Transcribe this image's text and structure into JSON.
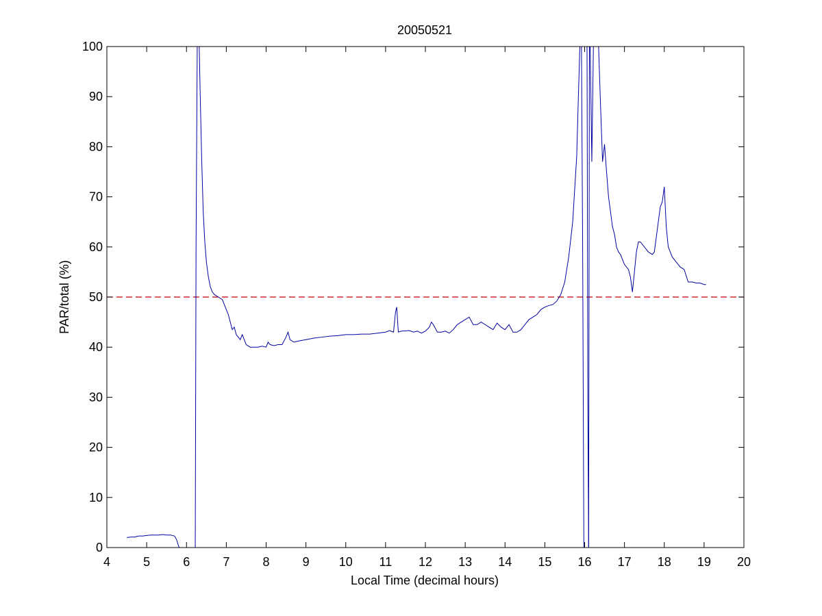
{
  "chart_data": {
    "type": "line",
    "title": "20050521",
    "xlabel": "Local Time (decimal hours)",
    "ylabel": "PAR/total (%)",
    "xlim": [
      4,
      20
    ],
    "ylim": [
      0,
      100
    ],
    "xticks": [
      "4",
      "5",
      "6",
      "7",
      "8",
      "9",
      "10",
      "11",
      "12",
      "13",
      "14",
      "15",
      "16",
      "17",
      "18",
      "19",
      "20"
    ],
    "yticks": [
      "0",
      "10",
      "20",
      "30",
      "40",
      "50",
      "60",
      "70",
      "80",
      "90",
      "100"
    ],
    "grid": false,
    "reference_line": {
      "y": 50,
      "style": "dashed",
      "color": "#c00000"
    },
    "series": [
      {
        "color": "#0000a0",
        "segments": [
          [
            [
              4.5,
              2.0
            ],
            [
              4.6,
              2.1
            ],
            [
              4.7,
              2.1
            ],
            [
              4.8,
              2.3
            ],
            [
              4.9,
              2.3
            ],
            [
              5.0,
              2.4
            ],
            [
              5.1,
              2.5
            ],
            [
              5.2,
              2.5
            ],
            [
              5.3,
              2.5
            ],
            [
              5.4,
              2.6
            ],
            [
              5.5,
              2.5
            ],
            [
              5.6,
              2.5
            ],
            [
              5.7,
              2.3
            ],
            [
              5.75,
              1.6
            ],
            [
              5.8,
              0.3
            ],
            [
              5.82,
              0.0
            ]
          ],
          [
            [
              6.22,
              0.0
            ],
            [
              6.24,
              60
            ],
            [
              6.27,
              100
            ]
          ],
          [
            [
              6.32,
              100
            ],
            [
              6.34,
              92
            ],
            [
              6.38,
              78
            ],
            [
              6.42,
              67
            ],
            [
              6.46,
              61
            ],
            [
              6.5,
              57
            ],
            [
              6.55,
              54
            ],
            [
              6.6,
              52
            ],
            [
              6.65,
              51
            ],
            [
              6.7,
              50.5
            ],
            [
              6.8,
              50
            ],
            [
              6.9,
              49.5
            ],
            [
              7.0,
              47.5
            ],
            [
              7.05,
              46.5
            ],
            [
              7.1,
              45
            ],
            [
              7.15,
              43.5
            ],
            [
              7.2,
              44
            ],
            [
              7.25,
              42.5
            ],
            [
              7.3,
              42
            ],
            [
              7.35,
              41.5
            ],
            [
              7.4,
              42.5
            ],
            [
              7.45,
              41.5
            ],
            [
              7.5,
              40.5
            ],
            [
              7.6,
              40
            ],
            [
              7.7,
              40
            ],
            [
              7.8,
              40
            ],
            [
              7.9,
              40.2
            ],
            [
              8.0,
              40
            ],
            [
              8.05,
              41
            ],
            [
              8.1,
              40.5
            ],
            [
              8.2,
              40.3
            ],
            [
              8.3,
              40.5
            ],
            [
              8.4,
              40.5
            ],
            [
              8.5,
              42
            ],
            [
              8.55,
              43
            ],
            [
              8.6,
              41.5
            ],
            [
              8.7,
              41
            ],
            [
              8.8,
              41.2
            ],
            [
              9.0,
              41.5
            ],
            [
              9.2,
              41.8
            ],
            [
              9.4,
              42
            ],
            [
              9.6,
              42.2
            ],
            [
              9.8,
              42.3
            ],
            [
              10.0,
              42.5
            ],
            [
              10.2,
              42.5
            ],
            [
              10.4,
              42.6
            ],
            [
              10.6,
              42.6
            ],
            [
              10.8,
              42.8
            ],
            [
              11.0,
              43
            ],
            [
              11.1,
              43.3
            ],
            [
              11.2,
              43
            ],
            [
              11.25,
              47
            ],
            [
              11.28,
              48
            ],
            [
              11.32,
              43
            ],
            [
              11.4,
              43.2
            ],
            [
              11.6,
              43.3
            ],
            [
              11.7,
              43
            ],
            [
              11.8,
              43.2
            ],
            [
              11.9,
              42.8
            ],
            [
              12.0,
              43.2
            ],
            [
              12.1,
              44
            ],
            [
              12.15,
              45
            ],
            [
              12.2,
              44.5
            ],
            [
              12.3,
              43
            ],
            [
              12.4,
              43
            ],
            [
              12.5,
              43.2
            ],
            [
              12.6,
              42.8
            ],
            [
              12.7,
              43.5
            ],
            [
              12.8,
              44.5
            ],
            [
              12.9,
              45
            ],
            [
              13.0,
              45.5
            ],
            [
              13.1,
              46
            ],
            [
              13.2,
              44.5
            ],
            [
              13.3,
              44.5
            ],
            [
              13.4,
              45
            ],
            [
              13.5,
              44.5
            ],
            [
              13.6,
              44
            ],
            [
              13.7,
              43.5
            ],
            [
              13.8,
              44.8
            ],
            [
              13.9,
              44
            ],
            [
              14.0,
              43.5
            ],
            [
              14.1,
              44.5
            ],
            [
              14.2,
              43
            ],
            [
              14.3,
              43
            ],
            [
              14.4,
              43.5
            ],
            [
              14.5,
              44.5
            ],
            [
              14.6,
              45.5
            ],
            [
              14.7,
              46
            ],
            [
              14.8,
              46.5
            ],
            [
              14.9,
              47.5
            ],
            [
              15.0,
              48
            ],
            [
              15.1,
              48.3
            ],
            [
              15.2,
              48.5
            ],
            [
              15.3,
              49.2
            ],
            [
              15.4,
              50.5
            ],
            [
              15.5,
              53
            ],
            [
              15.6,
              58
            ],
            [
              15.7,
              65
            ],
            [
              15.8,
              78
            ],
            [
              15.85,
              92
            ],
            [
              15.88,
              100
            ]
          ],
          [
            [
              15.92,
              100
            ],
            [
              15.95,
              60
            ],
            [
              15.98,
              0.0
            ]
          ],
          [
            [
              16.0,
              100
            ],
            [
              16.06,
              100
            ],
            [
              16.08,
              30
            ],
            [
              16.1,
              0.0
            ]
          ],
          [
            [
              16.1,
              0.0
            ],
            [
              16.12,
              100
            ]
          ],
          [
            [
              16.14,
              100
            ],
            [
              16.18,
              77
            ],
            [
              16.22,
              100
            ]
          ],
          [
            [
              16.35,
              100
            ],
            [
              16.4,
              88
            ],
            [
              16.45,
              77
            ],
            [
              16.5,
              80.5
            ],
            [
              16.55,
              75
            ],
            [
              16.6,
              70
            ],
            [
              16.65,
              67
            ],
            [
              16.7,
              64
            ],
            [
              16.75,
              62.5
            ],
            [
              16.8,
              60
            ],
            [
              16.85,
              59
            ],
            [
              16.9,
              58.5
            ],
            [
              17.0,
              56.5
            ],
            [
              17.1,
              55.5
            ],
            [
              17.15,
              54
            ],
            [
              17.2,
              51
            ],
            [
              17.25,
              55
            ],
            [
              17.3,
              59
            ],
            [
              17.35,
              61
            ],
            [
              17.4,
              61
            ],
            [
              17.5,
              60
            ],
            [
              17.6,
              59
            ],
            [
              17.7,
              58.5
            ],
            [
              17.75,
              59
            ],
            [
              17.8,
              62
            ],
            [
              17.85,
              65
            ],
            [
              17.9,
              68
            ],
            [
              17.95,
              69
            ],
            [
              18.0,
              72
            ],
            [
              18.05,
              64
            ],
            [
              18.1,
              60
            ],
            [
              18.2,
              58
            ],
            [
              18.3,
              57
            ],
            [
              18.4,
              56
            ],
            [
              18.5,
              55.5
            ],
            [
              18.6,
              53
            ],
            [
              18.7,
              53
            ],
            [
              18.8,
              52.8
            ],
            [
              18.9,
              52.8
            ],
            [
              19.0,
              52.5
            ],
            [
              19.05,
              52.5
            ]
          ]
        ]
      }
    ]
  }
}
